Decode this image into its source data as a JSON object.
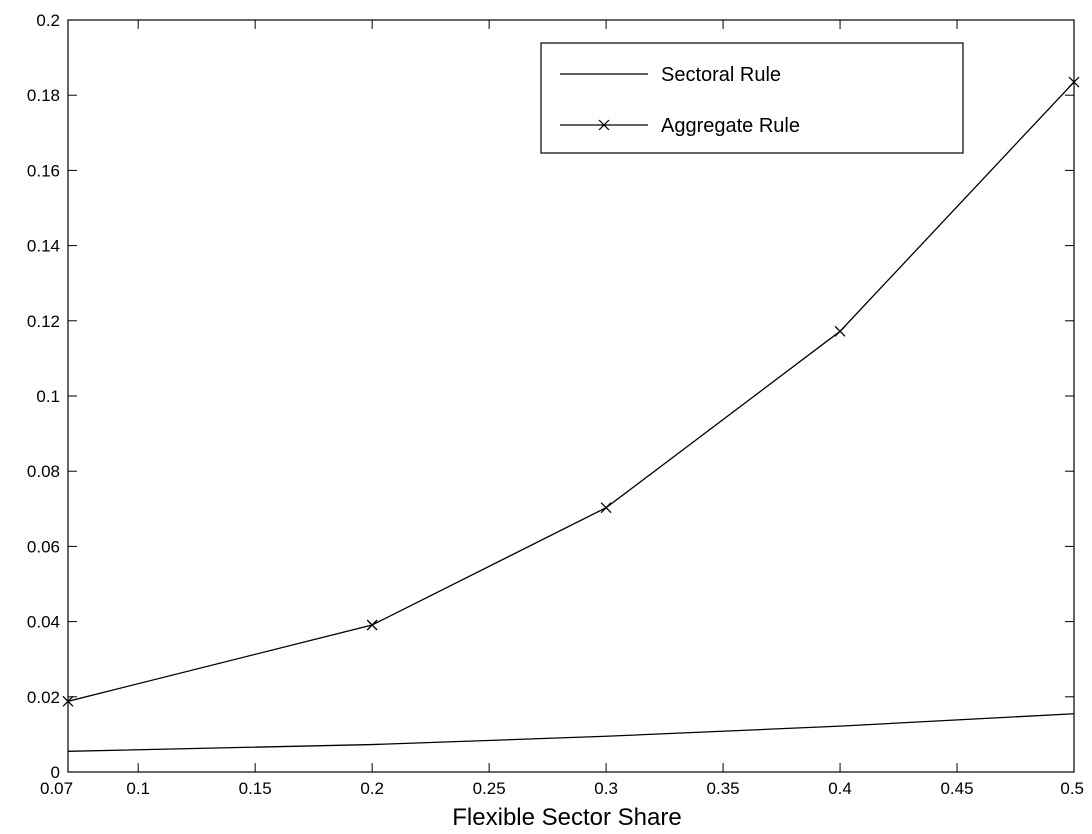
{
  "chart_data": {
    "type": "line",
    "title": "",
    "xlabel": "Flexible Sector Share",
    "ylabel": "",
    "xlim": [
      0.07,
      0.5
    ],
    "ylim": [
      0,
      0.2
    ],
    "x_ticks": [
      0.07,
      0.1,
      0.15,
      0.2,
      0.25,
      0.3,
      0.35,
      0.4,
      0.45,
      0.5
    ],
    "x_tick_labels": [
      "0.07",
      "0.1",
      "0.15",
      "0.2",
      "0.25",
      "0.3",
      "0.35",
      "0.4",
      "0.45",
      "0.5"
    ],
    "y_ticks": [
      0,
      0.02,
      0.04,
      0.06,
      0.08,
      0.1,
      0.12,
      0.14,
      0.16,
      0.18,
      0.2
    ],
    "y_tick_labels": [
      "0",
      "0.02",
      "0.04",
      "0.06",
      "0.08",
      "0.1",
      "0.12",
      "0.14",
      "0.16",
      "0.18",
      "0.2"
    ],
    "grid": false,
    "legend_position": "top-right",
    "series": [
      {
        "name": "Sectoral Rule",
        "marker": "none",
        "color": "#000000",
        "x": [
          0.07,
          0.2,
          0.3,
          0.4,
          0.5
        ],
        "y": [
          0.0055,
          0.0073,
          0.0095,
          0.0122,
          0.0155
        ]
      },
      {
        "name": "Aggregate Rule",
        "marker": "x",
        "color": "#000000",
        "x": [
          0.07,
          0.2,
          0.3,
          0.4,
          0.5
        ],
        "y": [
          0.0188,
          0.0391,
          0.0703,
          0.1172,
          0.1835
        ]
      }
    ]
  }
}
